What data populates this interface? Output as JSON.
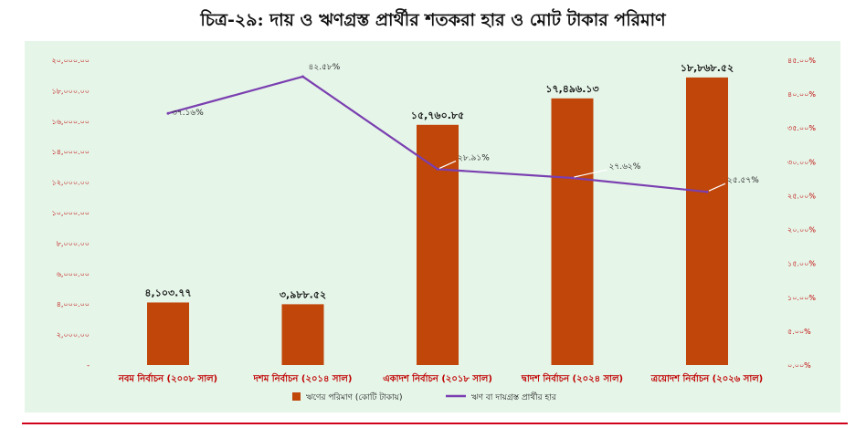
{
  "title": "চিত্র-২৯: দায় ও ঋণগ্রস্ত প্রার্থীর শতকরা হার ও মোট টাকার পরিমাণ",
  "colors": {
    "panel_bg": "#e5f5e8",
    "bar": "#c0460a",
    "line": "#7a3fb0",
    "axis_text": "#c00000",
    "bottom_rule": "#d0021b"
  },
  "chart_data": {
    "type": "bar",
    "categories": [
      "নবম নির্বাচন (২০০৮ সাল)",
      "দশম নির্বাচন (২০১৪ সাল)",
      "একাদশ নির্বাচন (২০১৮ সাল)",
      "দ্বাদশ নির্বাচন (২০২৪ সাল)",
      "ত্রয়োদশ নির্বাচন (২০২৬ সাল)"
    ],
    "series": [
      {
        "name": "ঋণের পরিমাণ (কোটি টাকায়)",
        "type": "bar",
        "axis": "left",
        "values": [
          4103.77,
          3988.52,
          15760.85,
          17496.13,
          18868.52
        ],
        "labels": [
          "৪,১০৩.৭৭",
          "৩,৯৮৮.৫২",
          "১৫,৭৬০.৮৫",
          "১৭,৪৯৬.১৩",
          "১৮,৮৬৮.৫২"
        ]
      },
      {
        "name": "ঋণ বা দায়গ্রস্ত প্রার্থীর হার",
        "type": "line",
        "axis": "right",
        "values": [
          37.16,
          42.58,
          28.91,
          27.62,
          25.57
        ],
        "labels": [
          "৩৭.১৬%",
          "৪২.৫৮%",
          "২৮.৯১%",
          "২৭.৬২%",
          "২৫.৫৭%"
        ]
      }
    ],
    "y_left": {
      "ylim": [
        0,
        20000
      ],
      "ticks": [
        0,
        2000,
        4000,
        6000,
        8000,
        10000,
        12000,
        14000,
        16000,
        18000,
        20000
      ],
      "tick_labels": [
        "-",
        "২,০০০.০০",
        "৪,০০০.০০",
        "৬,০০০.০০",
        "৮,০০০.০০",
        "১০,০০০.০০",
        "১২,০০০.০০",
        "১৪,০০০.০০",
        "১৬,০০০.০০",
        "১৮,০০০.০০",
        "২০,০০০.০০"
      ]
    },
    "y_right": {
      "ylim": [
        0,
        45
      ],
      "ticks": [
        0,
        5,
        10,
        15,
        20,
        25,
        30,
        35,
        40,
        45
      ],
      "tick_labels": [
        "০.০০%",
        "৫.০০%",
        "১০.০০%",
        "১৫.০০%",
        "২০.০০%",
        "২৫.০০%",
        "৩০.০০%",
        "৩৫.০০%",
        "৪০.০০%",
        "৪৫.০০%"
      ]
    },
    "grid": false,
    "legend": "bottom"
  }
}
